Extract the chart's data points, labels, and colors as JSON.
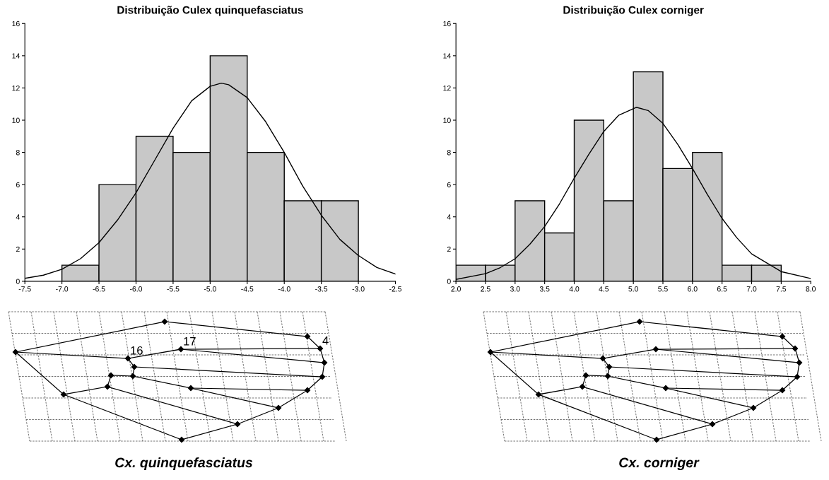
{
  "chart_data": [
    {
      "type": "histogram",
      "title": "Distribuição Culex quinquefasciatus",
      "color": "#c8c8c8",
      "bins": [
        -7.0,
        -6.5,
        -6.0,
        -5.5,
        -5.0,
        -4.5,
        -4.0,
        -3.5,
        -3.0
      ],
      "values": [
        1,
        6,
        9,
        8,
        14,
        8,
        5,
        5
      ],
      "series": [
        {
          "type": "line",
          "color": "#000000",
          "x": [
            -7.5,
            -7.25,
            -7.0,
            -6.75,
            -6.5,
            -6.25,
            -6.0,
            -5.75,
            -5.5,
            -5.25,
            -5.0,
            -4.85,
            -4.75,
            -4.5,
            -4.25,
            -4.0,
            -3.75,
            -3.5,
            -3.25,
            -3.0,
            -2.75,
            -2.5
          ],
          "values": [
            0.18,
            0.38,
            0.75,
            1.4,
            2.4,
            3.8,
            5.5,
            7.5,
            9.5,
            11.2,
            12.1,
            12.3,
            12.2,
            11.4,
            9.9,
            8.0,
            5.9,
            4.1,
            2.6,
            1.6,
            0.86,
            0.45
          ]
        }
      ],
      "xlim": [
        -7.5,
        -2.5
      ],
      "xticks": [
        -7.5,
        {
          "value": -7,
          "label": "-7.0"
        },
        -6.5,
        {
          "value": -6,
          "label": "-6.0"
        },
        -5.5,
        {
          "value": -5,
          "label": "-5.0"
        },
        -4.5,
        {
          "value": -4,
          "label": "-4.0"
        },
        -3.5,
        {
          "value": -3,
          "label": "-3.0"
        },
        -2.5
      ],
      "ylim": [
        0,
        16
      ],
      "yticks": [
        0,
        2,
        4,
        6,
        8,
        10,
        12,
        14,
        16
      ],
      "annotations": [
        "16",
        "17",
        "4",
        "Cx. quinquefasciatus"
      ]
    },
    {
      "type": "histogram",
      "title": "Distribuição Culex corniger",
      "color": "#c8c8c8",
      "bins": [
        2.0,
        2.5,
        3.0,
        3.5,
        4.0,
        4.5,
        5.0,
        5.5,
        6.0,
        6.5,
        7.0,
        7.5
      ],
      "values": [
        1,
        1,
        5,
        3,
        10,
        5,
        13,
        7,
        8,
        1,
        1
      ],
      "series": [
        {
          "type": "line",
          "color": "#000000",
          "x": [
            2.0,
            2.5,
            2.75,
            3.0,
            3.25,
            3.5,
            3.75,
            4.0,
            4.25,
            4.5,
            4.75,
            5.05,
            5.25,
            5.5,
            5.75,
            6.0,
            6.25,
            6.5,
            6.75,
            7.0,
            7.5,
            8.0
          ],
          "values": [
            0.12,
            0.47,
            0.85,
            1.4,
            2.3,
            3.4,
            4.8,
            6.4,
            7.9,
            9.3,
            10.3,
            10.8,
            10.6,
            9.8,
            8.5,
            7.0,
            5.4,
            3.9,
            2.7,
            1.7,
            0.6,
            0.17
          ]
        }
      ],
      "xlim": [
        2,
        8
      ],
      "xticks": [
        {
          "value": 2,
          "label": "2.0"
        },
        2.5,
        {
          "value": 3,
          "label": "3.0"
        },
        3.5,
        {
          "value": 4,
          "label": "4.0"
        },
        4.5,
        {
          "value": 5,
          "label": "5.0"
        },
        5.5,
        {
          "value": 6,
          "label": "6.0"
        },
        6.5,
        {
          "value": 7,
          "label": "7.0"
        },
        7.5,
        {
          "value": 8,
          "label": "8.0"
        }
      ],
      "ylim": [
        0,
        16
      ],
      "yticks": [
        0,
        2,
        4,
        6,
        8,
        10,
        12,
        14,
        16
      ],
      "annotations": [
        "Cx. corniger"
      ]
    }
  ]
}
